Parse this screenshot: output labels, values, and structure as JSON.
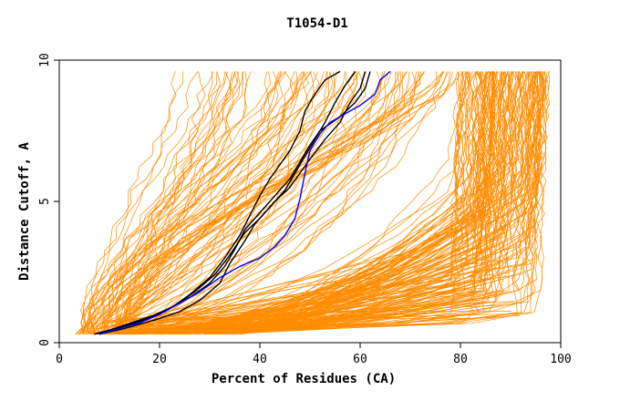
{
  "chart_data": {
    "type": "line",
    "title": "T1054-D1",
    "xlabel": "Percent of Residues (CA)",
    "ylabel": "Distance Cutoff, A",
    "xlim": [
      0,
      100
    ],
    "ylim": [
      0,
      10
    ],
    "x_ticks": [
      0,
      20,
      40,
      60,
      80,
      100
    ],
    "x_tick_labels": [
      "0",
      "20",
      "40",
      "60",
      "80",
      "100"
    ],
    "y_ticks": [
      0,
      5,
      10
    ],
    "y_tick_labels": [
      "0",
      "5",
      "10"
    ],
    "grid": false,
    "legend": "none",
    "colors": {
      "background": "#cfcfcf",
      "orange": "#ff8c00",
      "black": "#000000",
      "blue": "#0000ff"
    },
    "series": [
      {
        "group": "black",
        "points": [
          [
            7,
            0.3
          ],
          [
            12,
            0.5
          ],
          [
            17,
            0.8
          ],
          [
            22,
            1.2
          ],
          [
            26,
            1.7
          ],
          [
            30,
            2.3
          ],
          [
            33,
            3.0
          ],
          [
            36,
            3.8
          ],
          [
            38,
            4.5
          ],
          [
            40,
            5.2
          ],
          [
            42,
            5.8
          ],
          [
            44,
            6.3
          ],
          [
            46,
            6.8
          ],
          [
            48,
            7.5
          ],
          [
            49,
            8.2
          ],
          [
            51,
            8.8
          ],
          [
            53,
            9.3
          ],
          [
            56,
            9.6
          ]
        ]
      },
      {
        "group": "black",
        "points": [
          [
            8,
            0.3
          ],
          [
            13,
            0.5
          ],
          [
            19,
            0.8
          ],
          [
            24,
            1.1
          ],
          [
            28,
            1.5
          ],
          [
            32,
            2.1
          ],
          [
            34,
            2.8
          ],
          [
            37,
            3.6
          ],
          [
            39,
            4.2
          ],
          [
            42,
            4.8
          ],
          [
            45,
            5.4
          ],
          [
            47,
            6.0
          ],
          [
            49,
            6.6
          ],
          [
            51,
            7.2
          ],
          [
            53,
            7.8
          ],
          [
            55,
            8.5
          ],
          [
            57,
            9.1
          ],
          [
            59,
            9.6
          ]
        ]
      },
      {
        "group": "black",
        "points": [
          [
            7,
            0.3
          ],
          [
            11,
            0.5
          ],
          [
            16,
            0.8
          ],
          [
            21,
            1.1
          ],
          [
            26,
            1.6
          ],
          [
            30,
            2.1
          ],
          [
            33,
            2.7
          ],
          [
            35,
            3.3
          ],
          [
            37,
            4.0
          ],
          [
            40,
            4.6
          ],
          [
            43,
            5.2
          ],
          [
            46,
            5.8
          ],
          [
            48,
            6.4
          ],
          [
            50,
            7.0
          ],
          [
            52,
            7.5
          ],
          [
            56,
            8.0
          ],
          [
            59,
            8.5
          ],
          [
            61,
            9.0
          ],
          [
            62,
            9.6
          ]
        ]
      },
      {
        "group": "black",
        "points": [
          [
            8,
            0.3
          ],
          [
            13,
            0.6
          ],
          [
            18,
            0.9
          ],
          [
            23,
            1.3
          ],
          [
            27,
            1.8
          ],
          [
            31,
            2.4
          ],
          [
            34,
            3.1
          ],
          [
            37,
            3.9
          ],
          [
            40,
            4.4
          ],
          [
            43,
            5.0
          ],
          [
            46,
            5.5
          ],
          [
            48,
            6.0
          ],
          [
            50,
            6.5
          ],
          [
            53,
            7.2
          ],
          [
            56,
            7.8
          ],
          [
            58,
            8.5
          ],
          [
            60,
            9.0
          ],
          [
            61,
            9.6
          ]
        ]
      },
      {
        "group": "blue",
        "points": [
          [
            8,
            0.3
          ],
          [
            12,
            0.5
          ],
          [
            16,
            0.7
          ],
          [
            20,
            1.0
          ],
          [
            24,
            1.4
          ],
          [
            28,
            1.8
          ],
          [
            32,
            2.3
          ],
          [
            36,
            2.7
          ],
          [
            40,
            3.0
          ],
          [
            43,
            3.4
          ],
          [
            45,
            3.8
          ],
          [
            47,
            4.4
          ],
          [
            48,
            5.1
          ],
          [
            49,
            6.0
          ],
          [
            50,
            6.8
          ],
          [
            52,
            7.4
          ],
          [
            54,
            7.8
          ],
          [
            57,
            8.1
          ],
          [
            60,
            8.4
          ],
          [
            63,
            8.8
          ],
          [
            64,
            9.3
          ],
          [
            66,
            9.6
          ]
        ]
      }
    ]
  }
}
